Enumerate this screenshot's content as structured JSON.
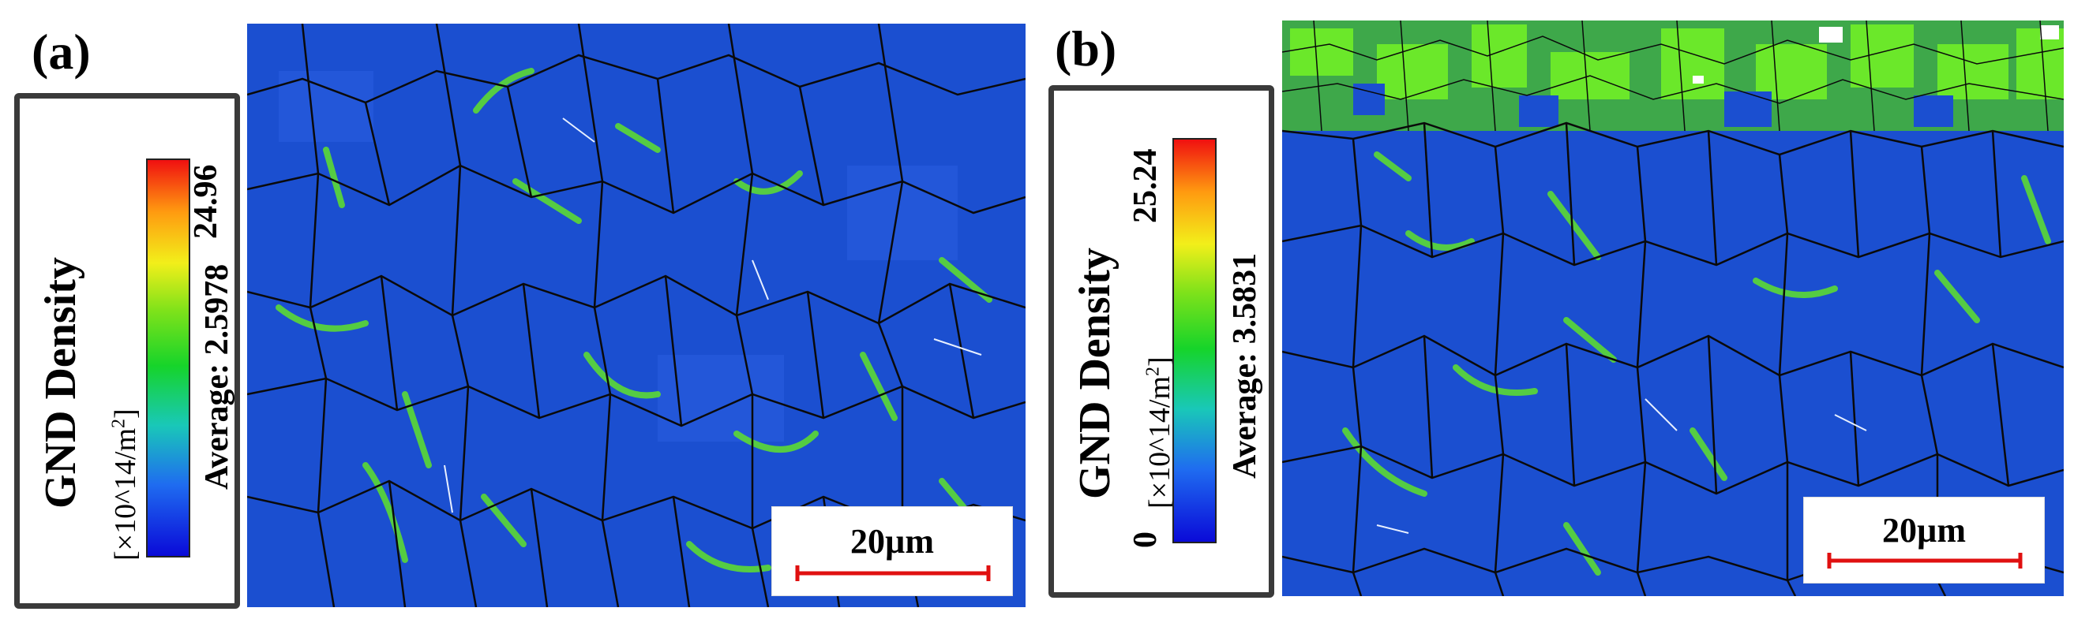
{
  "panels": [
    {
      "label": "(a)",
      "legend": {
        "title": "GND Density",
        "unit_prefix": "[×10^14/m",
        "unit_sup": "2",
        "unit_suffix": "]",
        "max": "24.96",
        "min": "",
        "average": "Average: 2.5978"
      },
      "scale_bar": "20µm"
    },
    {
      "label": "(b)",
      "legend": {
        "title": "GND Density",
        "unit_prefix": "[×10^14/m",
        "unit_sup": "2",
        "unit_suffix": "]",
        "max": "25.24",
        "min": "0",
        "average": "Average: 3.5831"
      },
      "scale_bar": "20µm"
    }
  ],
  "colors": {
    "map_base": "#1b4fd0",
    "grain_boundary": "#0a0a0a",
    "high_density": "#5fe22a",
    "scale_bar": "#e01010",
    "frame": "#3a3a3a"
  }
}
